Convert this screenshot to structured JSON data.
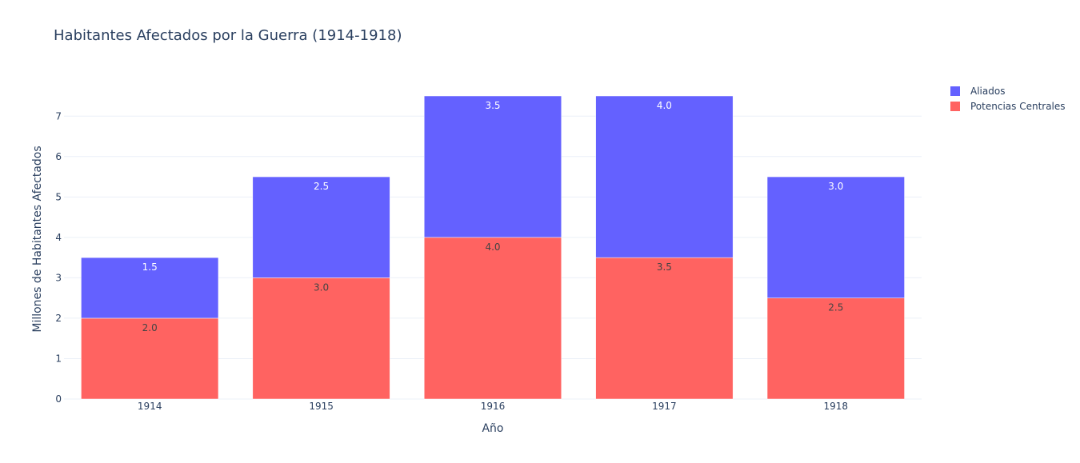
{
  "chart_data": {
    "type": "bar",
    "mode": "stacked",
    "title": "Habitantes Afectados por la Guerra (1914-1918)",
    "xlabel": "Año",
    "ylabel": "Millones de Habitantes Afectados",
    "categories": [
      "1914",
      "1915",
      "1916",
      "1917",
      "1918"
    ],
    "ylim": [
      0,
      7.5
    ],
    "yticks": [
      0,
      1,
      2,
      3,
      4,
      5,
      6,
      7
    ],
    "grid": true,
    "legend_position": "top-right",
    "series": [
      {
        "name": "Potencias Centrales",
        "color": "#ff6361",
        "label_color": "#444444",
        "values": [
          2.0,
          3.0,
          4.0,
          3.5,
          2.5
        ]
      },
      {
        "name": "Aliados",
        "color": "#6461ff",
        "label_color": "#ffffff",
        "values": [
          1.5,
          2.5,
          3.5,
          4.0,
          3.0
        ]
      }
    ],
    "legend_order": [
      "Aliados",
      "Potencias Centrales"
    ]
  }
}
